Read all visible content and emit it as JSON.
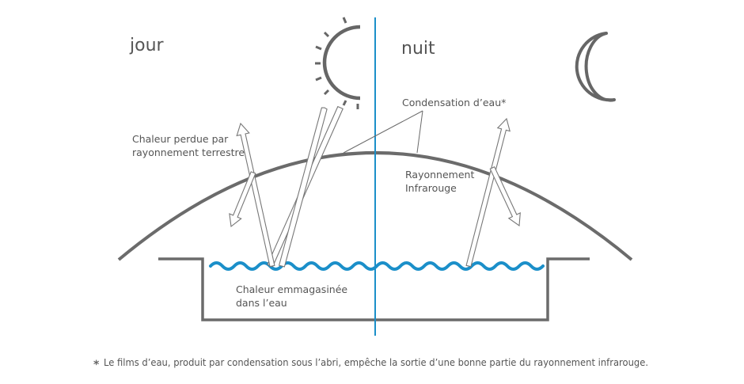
{
  "labels": {
    "day": "jour",
    "night": "nuit",
    "heat_lost": [
      "Chaleur perdue par",
      "rayonnement terrestre"
    ],
    "condensation": "Condensation d’eau*",
    "infrared": [
      "Rayonnement",
      "Infrarouge"
    ],
    "heat_stored": [
      "Chaleur emmagasinée",
      "dans l’eau"
    ]
  },
  "footnote": {
    "marker": "*",
    "text": "Le films d’eau, produit par condensation sous l’abri, empêche la sortie d’une bonne partie du rayonnement infrarouge."
  },
  "colors": {
    "outline": "#666666",
    "divider": "#1b8fc9",
    "water": "#1b8fc9",
    "arrow_stroke": "#777777",
    "text": "#555555"
  },
  "icons": {
    "sun": "sun-icon",
    "moon": "moon-icon"
  }
}
